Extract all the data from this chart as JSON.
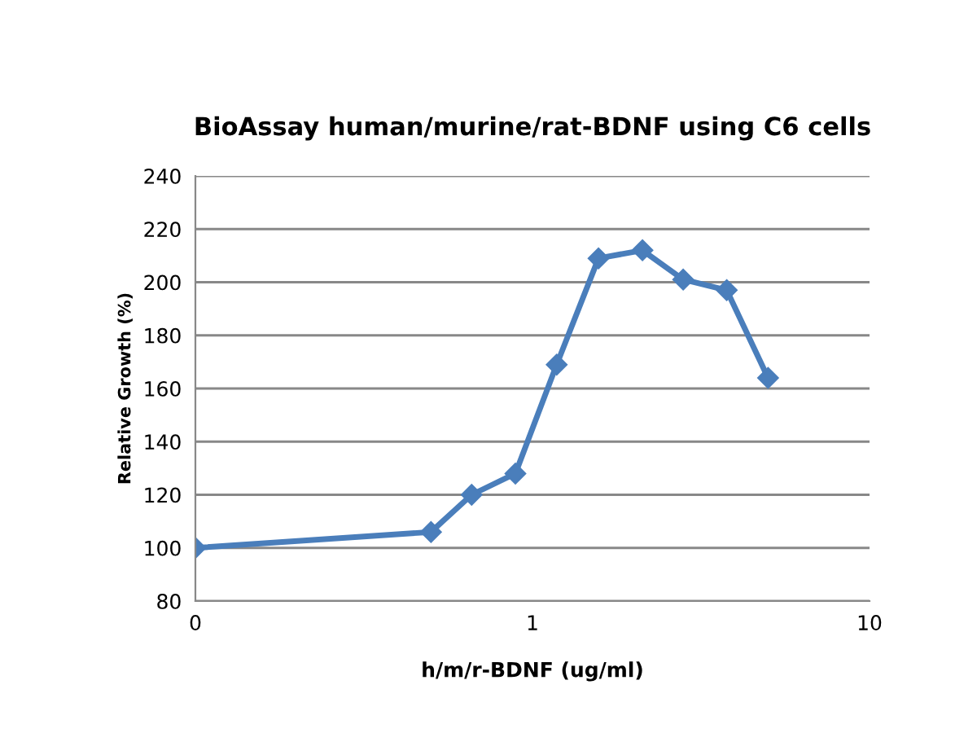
{
  "chart_data": {
    "type": "line",
    "title": "BioAssay human/murine/rat-BDNF using C6 cells",
    "xlabel": "h/m/r-BDNF (ug/ml)",
    "ylabel": "Relative Growth (%)",
    "x": [
      0.1,
      0.5,
      0.66,
      0.89,
      1.18,
      1.57,
      2.12,
      2.8,
      3.77,
      5.0
    ],
    "series": [
      {
        "color": "#4a7ebb",
        "values": [
          100,
          106,
          120,
          128,
          169,
          209,
          212,
          201,
          197,
          164
        ]
      }
    ],
    "log": "x",
    "xlim": [
      0.1,
      10
    ],
    "xticks": [
      {
        "value": 0.1,
        "label": "0"
      },
      1,
      10
    ],
    "ylim": [
      80,
      240
    ],
    "yticks": [
      80,
      100,
      120,
      140,
      160,
      180,
      200,
      220,
      240
    ],
    "grid": "y",
    "marker": "diamond",
    "line_style": "solid"
  }
}
